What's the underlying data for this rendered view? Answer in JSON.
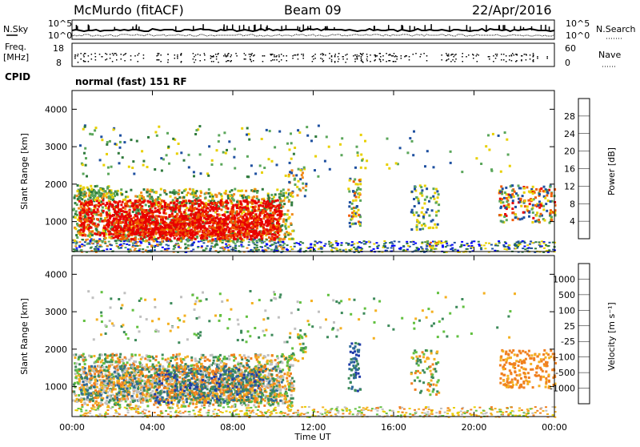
{
  "header": {
    "station": "McMurdo (fitACF)",
    "beam": "Beam 09",
    "date": "22/Apr/2016"
  },
  "top_panels": {
    "nsky_label": "N.Sky",
    "freq_label_1": "Freq.",
    "freq_label_2": "[MHz]",
    "cpid_label": "CPID",
    "nsearch_label": "N.Search",
    "nave_label": "Nave",
    "noise_ticks_left": [
      "10^5",
      "10^0"
    ],
    "noise_ticks_right": [
      "10^5",
      "10^0"
    ],
    "freq_ticks": [
      "18",
      "8"
    ],
    "nave_ticks": [
      "60",
      "0"
    ],
    "cpid_text": "normal (fast) 151 RF"
  },
  "chart_data": [
    {
      "type": "heatmap",
      "quantity": "Power",
      "xlabel": "",
      "ylabel": "Slant Range [km]",
      "y_ticks": [
        "4000",
        "3000",
        "2000",
        "1000"
      ],
      "y_tick_values": [
        4000,
        3000,
        2000,
        1000
      ],
      "ylim": [
        200,
        4500
      ],
      "xlim_hours": [
        0,
        24
      ],
      "colorbar_label": "Power [dB]",
      "colorbar_ticks": [
        "28",
        "24",
        "20",
        "16",
        "12",
        "8",
        "4"
      ],
      "colorbar_colors": [
        "#0000ff",
        "#1e50a0",
        "#2f7a3c",
        "#5aa65a",
        "#e8d000",
        "#f08a1c",
        "#f05a00",
        "#e80000"
      ],
      "main_echo_region": {
        "time_hours": [
          0,
          11
        ],
        "range_km": [
          500,
          1800
        ],
        "value_db": "24-28"
      }
    },
    {
      "type": "heatmap",
      "quantity": "Velocity",
      "xlabel": "Time UT",
      "ylabel": "Slant Range [km]",
      "x_ticks": [
        "00:00",
        "04:00",
        "08:00",
        "12:00",
        "16:00",
        "20:00",
        "00:00"
      ],
      "x_tick_values": [
        0,
        4,
        8,
        12,
        16,
        20,
        24
      ],
      "y_ticks": [
        "4000",
        "3000",
        "2000",
        "1000"
      ],
      "y_tick_values": [
        4000,
        3000,
        2000,
        1000
      ],
      "ylim": [
        200,
        4500
      ],
      "xlim_hours": [
        0,
        24
      ],
      "colorbar_label": "Velocity [m s⁻¹]",
      "colorbar_ticks": [
        "1000",
        "500",
        "100",
        "25",
        "-25",
        "-100",
        "-500",
        "-1000"
      ],
      "colorbar_colors": [
        "#1e3aa8",
        "#2f6a9a",
        "#3d8a5a",
        "#62c040",
        "#c0c0c0",
        "#f4b020",
        "#f08020",
        "#f04000",
        "#e80000"
      ]
    }
  ]
}
